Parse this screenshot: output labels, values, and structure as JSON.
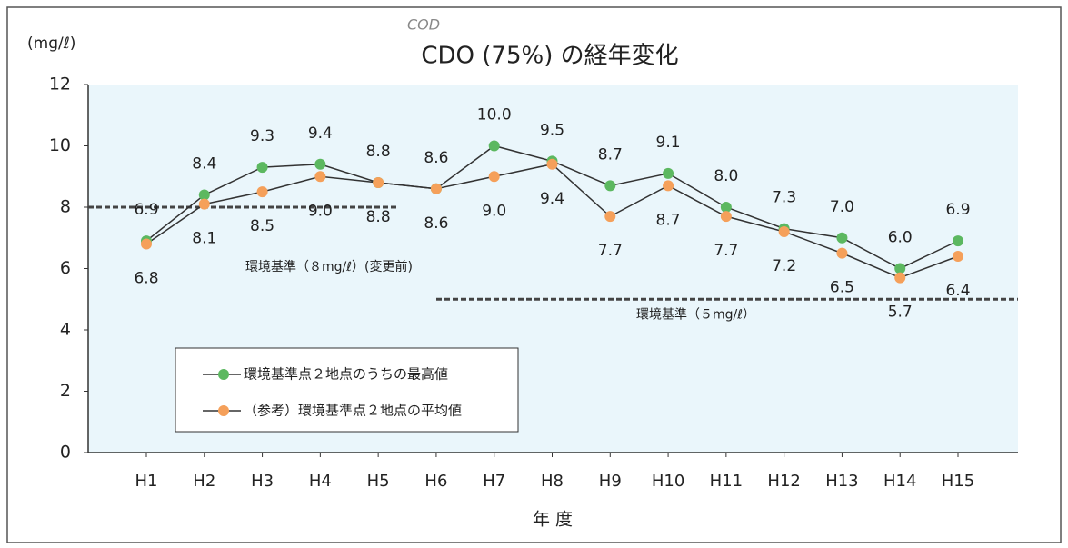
{
  "chart_data": {
    "type": "line",
    "title": "CDO (75%) の経年変化",
    "annotation": "COD",
    "y_label": "(mg/ℓ)",
    "x_label": "年 度",
    "categories": [
      "H1",
      "H2",
      "H3",
      "H4",
      "H5",
      "H6",
      "H7",
      "H8",
      "H9",
      "H10",
      "H11",
      "H12",
      "H13",
      "H14",
      "H15"
    ],
    "series": [
      {
        "name": "環境基準点２地点のうちの最高値",
        "color": "#5cb860",
        "values": [
          6.9,
          8.4,
          9.3,
          9.4,
          8.8,
          8.6,
          10.0,
          9.5,
          8.7,
          9.1,
          8.0,
          7.3,
          7.0,
          6.0,
          6.9
        ],
        "value_labels": [
          "6.9",
          "8.4",
          "9.3",
          "9.4",
          "8.8",
          "8.6",
          "10.0",
          "9.5",
          "8.7",
          "9.1",
          "8.0",
          "7.3",
          "7.0",
          "6.0",
          "6.9"
        ]
      },
      {
        "name": "（参考）環境基準点２地点の平均値",
        "color": "#f5a05a",
        "values": [
          6.8,
          8.1,
          8.5,
          9.0,
          8.8,
          8.6,
          9.0,
          9.4,
          7.7,
          8.7,
          7.7,
          7.2,
          6.5,
          5.7,
          6.4
        ],
        "value_labels": [
          "6.8",
          "8.1",
          "8.5",
          "9.0",
          "8.8",
          "8.6",
          "9.0",
          "9.4",
          "7.7",
          "8.7",
          "7.7",
          "7.2",
          "6.5",
          "5.7",
          "6.4"
        ]
      }
    ],
    "line_color": "#333333",
    "reference_lines": [
      {
        "value": 8,
        "label": "環境基準（８mg/ℓ）(変更前)"
      },
      {
        "value": 5,
        "label": "環境基準（５mg/ℓ）"
      }
    ],
    "ylim": [
      0,
      12
    ],
    "yticks": [
      0,
      2,
      4,
      6,
      8,
      10,
      12
    ],
    "grid": false
  }
}
